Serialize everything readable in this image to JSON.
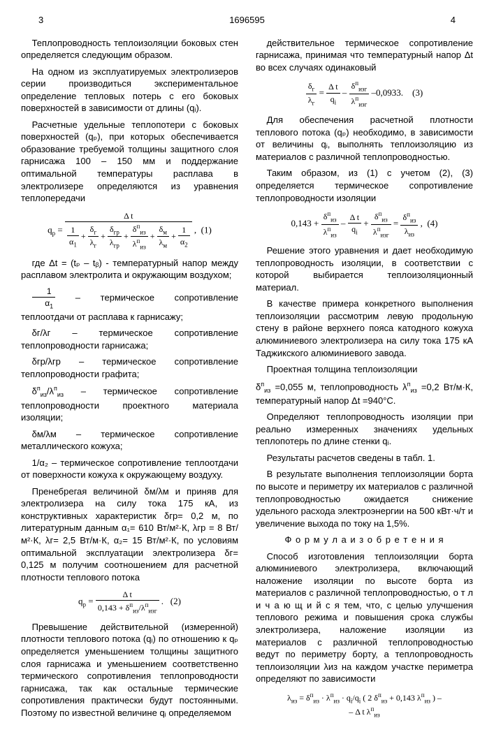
{
  "header": {
    "pageLeft": "3",
    "docNumber": "1696595",
    "pageRight": "4"
  },
  "col1": {
    "p1": "Теплопроводность теплоизоляции боковых стен определяется следующим образом.",
    "p2": "На одном из эксплуатируемых электролизеров серии производиться экспериментальное определение тепловых потерь с его боковых поверхностей в зависимости от длины (qᵢ).",
    "p3": "Расчетные удельные теплопотери с боковых поверхностей (qₚ), при которых обеспечивается образование требуемой толщины защитного слоя гарнисажа 100 – 150 мм и поддержание оптимальной температуры расплава в электролизере определяются из уравнения теплопередачи",
    "p4a": "где Δt = (tₚ – tᵦ) - температурный напор между расплавом электролита и окружающим воздухом;",
    "p4b": "термическое сопротивление теплоотдачи от расплава к гарнисажу;",
    "p4c": "δг/λг – термическое сопротивление теплопроводности гарнисажа;",
    "p4d": "δгр/λгр – термическое сопротивление теплопроводности графита;",
    "p4e": " – термическое сопротивление теплопроводности проектного материала изоляции;",
    "p4f": "δм/λм – термическое сопротивление металлического кожуха;",
    "p4g": "1/α₂ – термическое сопротивление теплоотдачи от поверхности кожуха к окружающему воздуху.",
    "p5": "Пренебрегая величиной δм/λм и приняв для электролизера на силу тока 175 кА, из конструктивных характеристик δгр= 0,2 м, по литературным данным α₁= 610 Вт/м²·К, λгр = 8 Вт/м²·К, λг= 2,5 Вт/м·К, α₂= 15 Вт/м²·К, по условиям оптимальной эксплуатации электролизера δг= 0,125 м получим соотношением для расчетной плотности теплового потока",
    "p6": "Превышение действительной (измеренной) плотности теплового потока (qᵢ) по отношению к qₚ определяется уменьшением толщины защитного слоя гарнисажа и уменьшением соответственно термического сопротивления теплопроводности гарнисажа, так как остальные термические сопротивления практически будут постоянными. Поэтому по известной величине qᵢ определяемом"
  },
  "col2": {
    "p1": "действительное термическое сопротивление гарнисажа, принимая что температурный напор Δt во всех случаях одинаковый",
    "p2": "Для обеспечения расчетной плотности теплового потока (qₚ) необходимо, в зависимости от величины qᵢ, выполнять теплоизоляцию из материалов с различной теплопроводностью.",
    "p3": "Таким образом, из (1) с учетом (2), (3) определяется термическое сопротивление теплопроводности изоляции",
    "p4": "Решение этого уравнения и дает необходимую теплопроводность изоляции, в соответствии с которой выбирается теплоизоляционный материал.",
    "p5": "В качестве примера конкретного выполнения теплоизоляции рассмотрим левую продольную стену в районе верхнего пояса катодного кожуха алюминиевого электролизера на силу тока 175 кА Таджикского алюминиевого завода.",
    "p6": "Проектная толщина теплоизоляции",
    "p6b": " =0,055 м, теплопроводность ",
    "p6c": " =0,2 Вт/м·К, температурный напор Δt =940°С.",
    "p7": "Определяют теплопроводность изоляции при реально измеренных значениях удельных теплопотерь по длине стенки qᵢ.",
    "p8": "Результаты расчетов сведены в табл. 1.",
    "p9": "В результате выполнения теплоизоляции борта по высоте и периметру их материалов с различной теплопроводностью ожидается снижение удельного расхода электроэнергии на 500 кВт·ч/т и увеличение выхода по току на 1,5%.",
    "claimTitle": "Ф о р м у л а   и з о б р е т е н и я",
    "p10": "Способ изготовления теплоизоляции борта алюминиевого электролизера, включающий наложение изоляции по высоте борта из материалов с различной теплопроводностью, о т л и ч а ю щ и й с я тем, что, с целью улучшения теплового режима и повышения срока службы электролизера, наложение изоляции из материалов с различной теплопроводностью ведут по периметру борту, а теплопроводность теплоизоляции λиз на каждом участке периметра определяют по зависимости"
  },
  "markers": [
    "5",
    "10",
    "15",
    "20",
    "25",
    "30",
    "35",
    "40",
    "45",
    "50",
    "55"
  ]
}
